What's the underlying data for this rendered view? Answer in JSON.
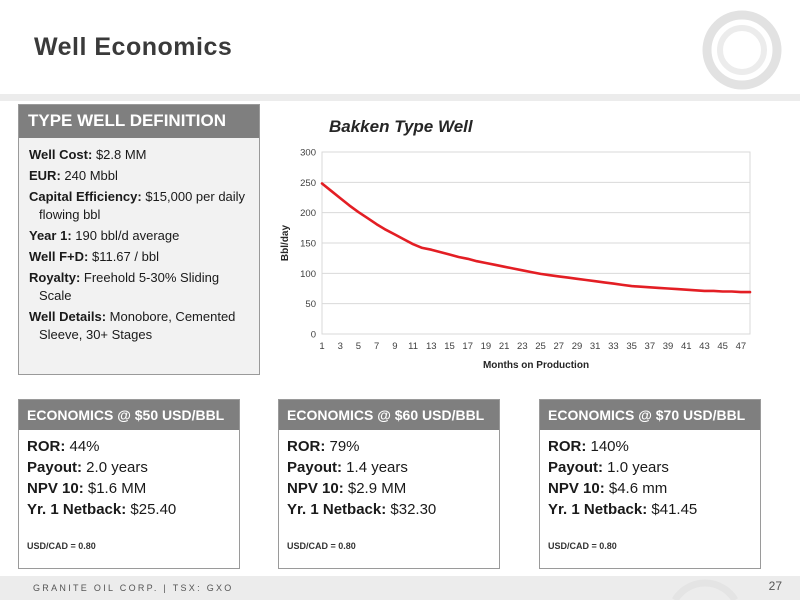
{
  "slide": {
    "title": "Well Economics",
    "footer": "GRANITE OIL CORP. | TSX: GXO",
    "page_number": "27"
  },
  "definition": {
    "header": "TYPE WELL DEFINITION",
    "items": [
      {
        "label": "Well Cost:",
        "value": " $2.8 MM"
      },
      {
        "label": "EUR:",
        "value": " 240 Mbbl"
      },
      {
        "label": "Capital Efficiency:",
        "value": " $15,000 per daily flowing bbl"
      },
      {
        "label": "Year 1:",
        "value": " 190 bbl/d average"
      },
      {
        "label": "Well F+D:",
        "value": " $11.67 / bbl"
      },
      {
        "label": "Royalty:",
        "value": " Freehold 5-30% Sliding Scale"
      },
      {
        "label": "Well Details:",
        "value": " Monobore, Cemented Sleeve, 30+ Stages"
      }
    ]
  },
  "economics": [
    {
      "header": "ECONOMICS @ $50 USD/BBL",
      "ror_label": "ROR:",
      "ror": " 44%",
      "payout_label": "Payout:",
      "payout": " 2.0 years",
      "npv_label": "NPV 10:",
      "npv": " $1.6 MM",
      "netback_label": "Yr. 1 Netback:",
      "netback": " $25.40",
      "note": "USD/CAD = 0.80"
    },
    {
      "header": "ECONOMICS @ $60 USD/BBL",
      "ror_label": "ROR:",
      "ror": " 79%",
      "payout_label": "Payout:",
      "payout": " 1.4 years",
      "npv_label": "NPV 10:",
      "npv": " $2.9 MM",
      "netback_label": "Yr. 1 Netback:",
      "netback": " $32.30",
      "note": "USD/CAD = 0.80"
    },
    {
      "header": "ECONOMICS @ $70 USD/BBL",
      "ror_label": "ROR:",
      "ror": " 140%",
      "payout_label": "Payout:",
      "payout": " 1.0 years",
      "npv_label": "NPV 10:",
      "npv": " $4.6 mm",
      "netback_label": "Yr. 1 Netback:",
      "netback": " $41.45",
      "note": "USD/CAD = 0.80"
    }
  ],
  "chart_data": {
    "type": "line",
    "title": "Bakken Type Well",
    "xlabel": "Months on Production",
    "ylabel": "Bbl/day",
    "ylim": [
      0,
      300
    ],
    "yticks": [
      0,
      50,
      100,
      150,
      200,
      250,
      300
    ],
    "xticks": [
      1,
      3,
      5,
      7,
      9,
      11,
      13,
      15,
      17,
      19,
      21,
      23,
      25,
      27,
      29,
      31,
      33,
      35,
      37,
      39,
      41,
      43,
      45,
      47
    ],
    "grid": true,
    "line_color": "#e31e24",
    "series": [
      {
        "x": [
          1,
          2,
          3,
          4,
          5,
          6,
          7,
          8,
          9,
          10,
          11,
          12,
          13,
          14,
          15,
          16,
          17,
          18,
          19,
          20,
          21,
          22,
          23,
          24,
          25,
          26,
          27,
          28,
          29,
          30,
          31,
          32,
          33,
          34,
          35,
          36,
          37,
          38,
          39,
          40,
          41,
          42,
          43,
          44,
          45,
          46,
          47,
          48
        ],
        "values": [
          248,
          236,
          224,
          212,
          201,
          191,
          181,
          172,
          164,
          156,
          148,
          142,
          139,
          135,
          131,
          127,
          124,
          120,
          117,
          114,
          111,
          108,
          105,
          102,
          99,
          97,
          95,
          93,
          91,
          89,
          87,
          85,
          83,
          81,
          79,
          78,
          77,
          76,
          75,
          74,
          73,
          72,
          71,
          71,
          70,
          70,
          69,
          69
        ]
      }
    ]
  }
}
